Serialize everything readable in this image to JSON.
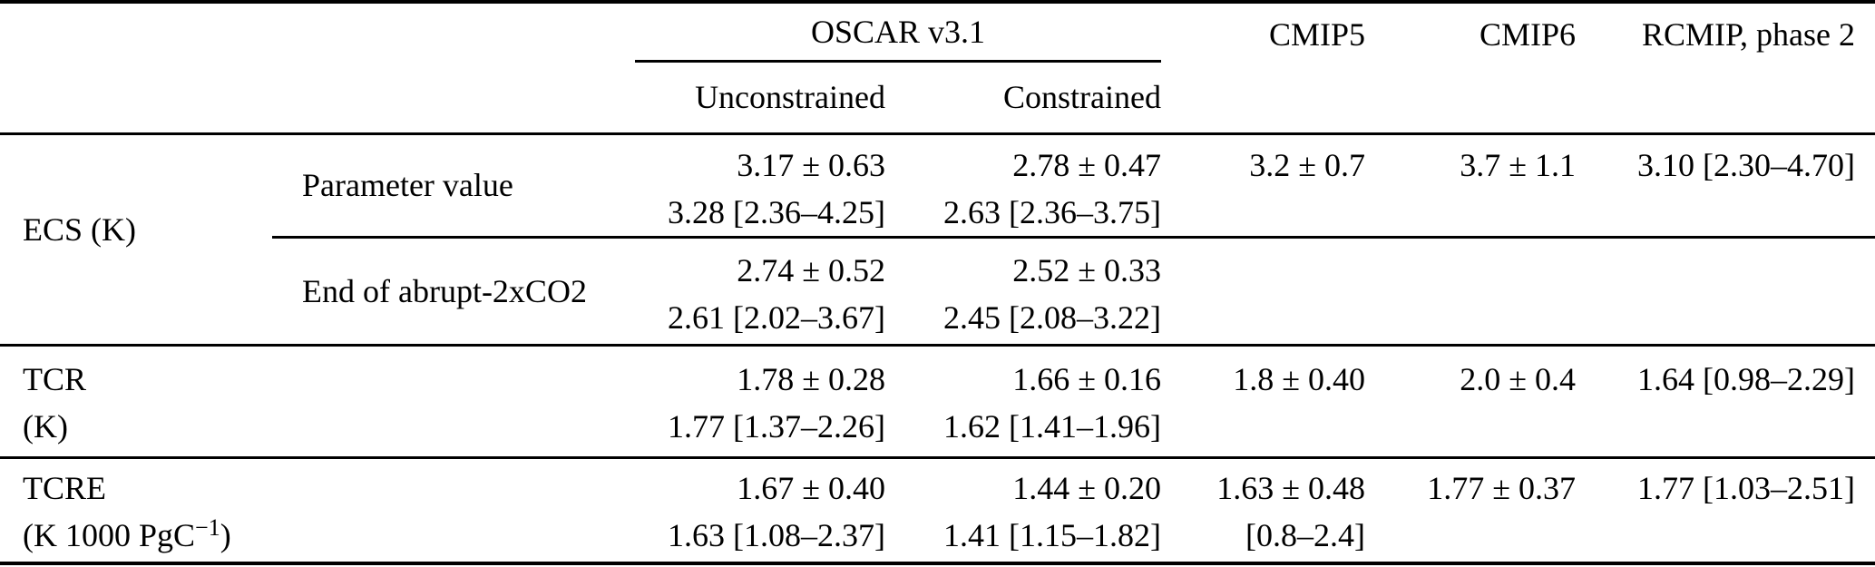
{
  "header": {
    "group_oscar": "OSCAR v3.1",
    "sub_unconstrained": "Unconstrained",
    "sub_constrained": "Constrained",
    "col_cmip5": "CMIP5",
    "col_cmip6": "CMIP6",
    "col_rcmip": "RCMIP, phase 2"
  },
  "body": {
    "ecs": {
      "label": "ECS (K)",
      "param": {
        "sublabel": "Parameter value",
        "unc1": "3.17 ± 0.63",
        "unc2": "3.28 [2.36–4.25]",
        "con1": "2.78 ± 0.47",
        "con2": "2.63 [2.36–3.75]",
        "cmip5": "3.2 ± 0.7",
        "cmip6": "3.7 ± 1.1",
        "rcmip": "3.10 [2.30–4.70]"
      },
      "abrupt": {
        "sublabel": "End of abrupt-2xCO2",
        "unc1": "2.74 ± 0.52",
        "unc2": "2.61 [2.02–3.67]",
        "con1": "2.52 ± 0.33",
        "con2": "2.45 [2.08–3.22]"
      }
    },
    "tcr": {
      "label1": "TCR",
      "label2": "(K)",
      "unc1": "1.78 ± 0.28",
      "unc2": "1.77 [1.37–2.26]",
      "con1": "1.66 ± 0.16",
      "con2": "1.62 [1.41–1.96]",
      "cmip5": "1.8 ± 0.40",
      "cmip6": "2.0 ± 0.4",
      "rcmip": "1.64 [0.98–2.29]"
    },
    "tcre": {
      "label1": "TCRE",
      "unit_pre": "(K 1000 PgC",
      "unit_sup": "−1",
      "unit_post": ")",
      "unc1": "1.67 ± 0.40",
      "unc2": "1.63 [1.08–2.37]",
      "con1": "1.44 ± 0.20",
      "con2": "1.41 [1.15–1.82]",
      "cmip5_1": "1.63 ± 0.48",
      "cmip5_2": "[0.8–2.4]",
      "cmip6": "1.77 ± 0.37",
      "rcmip": "1.77 [1.03–2.51]"
    }
  }
}
